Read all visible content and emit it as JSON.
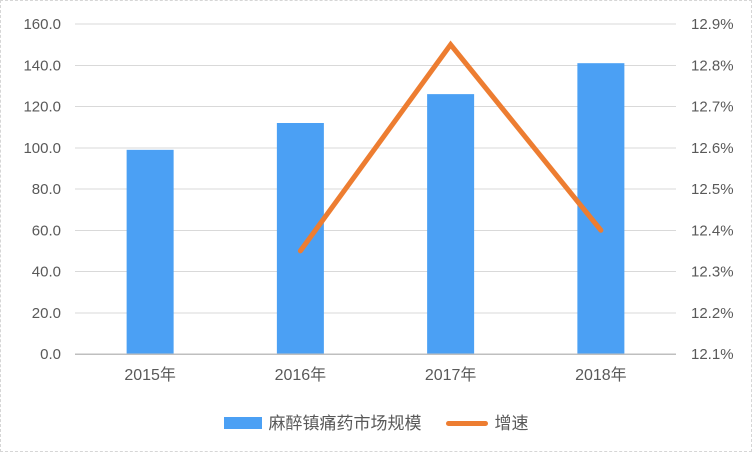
{
  "chart_data": {
    "type": "bar",
    "subtype": "combo-bar-line",
    "title": "",
    "categories": [
      "2015年",
      "2016年",
      "2017年",
      "2018年"
    ],
    "series": [
      {
        "name": "麻醉镇痛药市场规模",
        "type": "bar",
        "axis": "left",
        "color": "#4BA0F4",
        "values": [
          99,
          112,
          126,
          141
        ]
      },
      {
        "name": "增速",
        "type": "line",
        "axis": "right",
        "color": "#ED7D31",
        "values": [
          null,
          12.35,
          12.85,
          12.4
        ]
      }
    ],
    "left_axis": {
      "min": 0,
      "max": 160,
      "tick_labels": [
        "0.0",
        "20.0",
        "40.0",
        "60.0",
        "80.0",
        "100.0",
        "120.0",
        "140.0",
        "160.0"
      ]
    },
    "right_axis": {
      "min": 12.1,
      "max": 12.9,
      "tick_labels": [
        "12.1%",
        "12.2%",
        "12.3%",
        "12.4%",
        "12.5%",
        "12.6%",
        "12.7%",
        "12.8%",
        "12.9%"
      ]
    },
    "grid": true,
    "legend_position": "bottom",
    "colors": {
      "bar": "#4BA0F4",
      "line": "#ED7D31",
      "grid": "#D9D9D9",
      "axis_line": "#BFBFBF",
      "text": "#595959"
    }
  }
}
